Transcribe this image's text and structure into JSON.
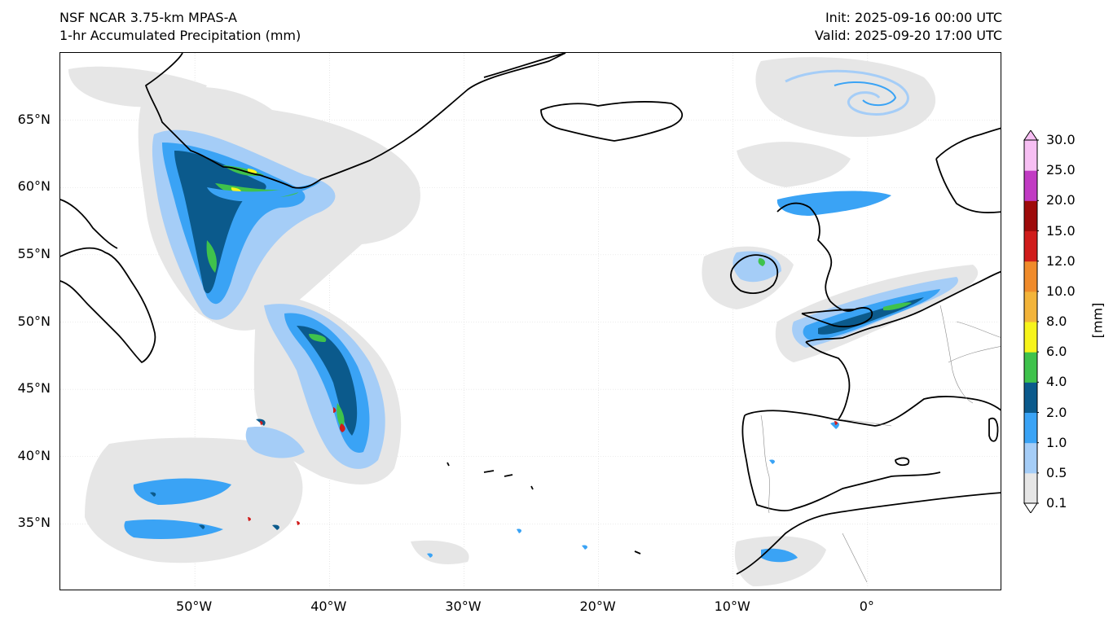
{
  "header": {
    "model": "NSF NCAR 3.75-km MPAS-A",
    "field": "1-hr Accumulated Precipitation (mm)",
    "init": "Init: 2025-09-16 00:00 UTC",
    "valid": "Valid: 2025-09-20 17:00 UTC"
  },
  "map": {
    "lon_range": [
      -60,
      10
    ],
    "lat_range": [
      30,
      70
    ],
    "lat_ticks": [
      {
        "value": 65,
        "label": "65°N"
      },
      {
        "value": 60,
        "label": "60°N"
      },
      {
        "value": 55,
        "label": "55°N"
      },
      {
        "value": 50,
        "label": "50°N"
      },
      {
        "value": 45,
        "label": "45°N"
      },
      {
        "value": 40,
        "label": "40°N"
      },
      {
        "value": 35,
        "label": "35°N"
      }
    ],
    "lon_ticks": [
      {
        "value": -50,
        "label": "50°W"
      },
      {
        "value": -40,
        "label": "40°W"
      },
      {
        "value": -30,
        "label": "30°W"
      },
      {
        "value": -20,
        "label": "20°W"
      },
      {
        "value": -10,
        "label": "10°W"
      },
      {
        "value": 0,
        "label": "0°"
      }
    ],
    "gridlines": true
  },
  "colorbar": {
    "unit": "[mm]",
    "levels": [
      "0.1",
      "0.5",
      "1.0",
      "2.0",
      "4.0",
      "6.0",
      "8.0",
      "10.0",
      "12.0",
      "15.0",
      "20.0",
      "25.0",
      "30.0"
    ],
    "colors": [
      "#e6e6e6",
      "#a5cdf7",
      "#3aa3f5",
      "#0b5a8c",
      "#3fc24c",
      "#f7f41b",
      "#f3b43a",
      "#f08b2b",
      "#d01c1b",
      "#9e0b0b",
      "#c13bc3",
      "#f7bff3"
    ],
    "extend": "both"
  }
}
